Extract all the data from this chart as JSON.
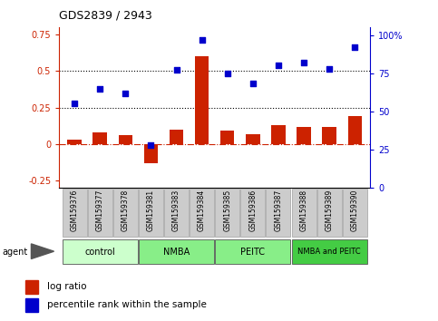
{
  "title": "GDS2839 / 2943",
  "categories": [
    "GSM159376",
    "GSM159377",
    "GSM159378",
    "GSM159381",
    "GSM159383",
    "GSM159384",
    "GSM159385",
    "GSM159386",
    "GSM159387",
    "GSM159388",
    "GSM159389",
    "GSM159390"
  ],
  "log_ratio": [
    0.03,
    0.08,
    0.06,
    -0.13,
    0.1,
    0.6,
    0.09,
    0.07,
    0.13,
    0.12,
    0.12,
    0.19
  ],
  "percentile_rank": [
    55,
    65,
    62,
    28,
    77,
    97,
    75,
    68,
    80,
    82,
    78,
    92
  ],
  "bar_color": "#cc2200",
  "dot_color": "#0000cc",
  "ylim_left": [
    -0.3,
    0.8
  ],
  "ylim_right": [
    0,
    105
  ],
  "yticks_left": [
    -0.25,
    0.0,
    0.25,
    0.5,
    0.75
  ],
  "yticks_right": [
    0,
    25,
    50,
    75,
    100
  ],
  "ytick_labels_left": [
    "-0.25",
    "0",
    "0.25",
    "0.5",
    "0.75"
  ],
  "ytick_labels_right": [
    "0",
    "25",
    "50",
    "75",
    "100%"
  ],
  "hlines": [
    0.25,
    0.5
  ],
  "zero_line_color": "#cc2200",
  "groups": [
    {
      "label": "control",
      "start": 0,
      "end": 3,
      "color": "#ccffcc"
    },
    {
      "label": "NMBA",
      "start": 3,
      "end": 6,
      "color": "#88ee88"
    },
    {
      "label": "PEITC",
      "start": 6,
      "end": 9,
      "color": "#88ee88"
    },
    {
      "label": "NMBA and PEITC",
      "start": 9,
      "end": 12,
      "color": "#44cc44"
    }
  ],
  "agent_label": "agent",
  "legend_bar_label": "log ratio",
  "legend_dot_label": "percentile rank within the sample",
  "tick_label_color_left": "#cc2200",
  "tick_label_color_right": "#0000cc"
}
